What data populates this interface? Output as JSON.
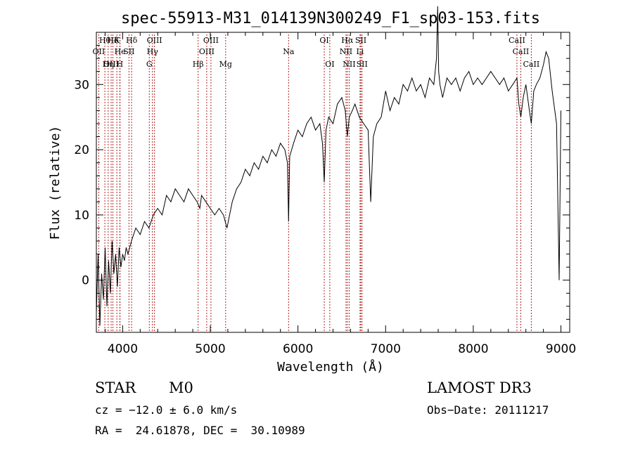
{
  "chart_data": {
    "type": "line",
    "title": "spec-55913-M31_014139N300249_F1_sp03-153.fits",
    "xlabel": "Wavelength (Å)",
    "ylabel": "Flux (relative)",
    "xlim": [
      3700,
      9100
    ],
    "ylim": [
      -8,
      38
    ],
    "x_ticks": [
      4000,
      5000,
      6000,
      7000,
      8000,
      9000
    ],
    "y_ticks": [
      0,
      10,
      20,
      30
    ],
    "grid": false,
    "series": [
      {
        "name": "spectrum",
        "x": [
          3700,
          3720,
          3740,
          3760,
          3780,
          3800,
          3820,
          3840,
          3860,
          3880,
          3900,
          3920,
          3940,
          3960,
          3980,
          4000,
          4020,
          4040,
          4060,
          4080,
          4100,
          4150,
          4200,
          4250,
          4300,
          4350,
          4400,
          4450,
          4500,
          4550,
          4600,
          4650,
          4700,
          4750,
          4800,
          4850,
          4880,
          4900,
          4950,
          5000,
          5050,
          5100,
          5150,
          5170,
          5190,
          5250,
          5300,
          5350,
          5400,
          5450,
          5500,
          5550,
          5600,
          5650,
          5700,
          5750,
          5800,
          5850,
          5880,
          5893,
          5906,
          5950,
          6000,
          6050,
          6100,
          6150,
          6200,
          6250,
          6280,
          6300,
          6320,
          6350,
          6400,
          6450,
          6500,
          6540,
          6563,
          6585,
          6620,
          6650,
          6700,
          6750,
          6800,
          6830,
          6860,
          6880,
          6900,
          6950,
          7000,
          7050,
          7100,
          7150,
          7200,
          7250,
          7300,
          7350,
          7400,
          7450,
          7500,
          7550,
          7580,
          7594,
          7605,
          7620,
          7650,
          7700,
          7750,
          7800,
          7850,
          7900,
          7950,
          8000,
          8050,
          8100,
          8150,
          8200,
          8250,
          8300,
          8350,
          8400,
          8450,
          8498,
          8520,
          8542,
          8570,
          8600,
          8640,
          8662,
          8690,
          8720,
          8760,
          8800,
          8830,
          8860,
          8900,
          8950,
          8980,
          9000
        ],
        "y": [
          -5,
          4,
          -7,
          1,
          -3,
          5,
          -4,
          3,
          -2,
          6,
          1,
          4,
          -1,
          5,
          2,
          4,
          3,
          5,
          4,
          5,
          6,
          8,
          7,
          9,
          8,
          10,
          11,
          10,
          13,
          12,
          14,
          13,
          12,
          14,
          13,
          12,
          11,
          13,
          12,
          11,
          10,
          11,
          10,
          9,
          8,
          12,
          14,
          15,
          17,
          16,
          18,
          17,
          19,
          18,
          20,
          19,
          21,
          20,
          18,
          9,
          19,
          21,
          23,
          22,
          24,
          25,
          23,
          24,
          21,
          15,
          23,
          25,
          24,
          27,
          28,
          26,
          22,
          25,
          26,
          27,
          25,
          24,
          23,
          12,
          22,
          23,
          24,
          25,
          29,
          26,
          28,
          27,
          30,
          29,
          31,
          29,
          30,
          28,
          31,
          30,
          34,
          42,
          32,
          30,
          28,
          31,
          30,
          31,
          29,
          31,
          32,
          30,
          31,
          30,
          31,
          32,
          31,
          30,
          31,
          29,
          30,
          31,
          27,
          25,
          28,
          30,
          26,
          24,
          29,
          30,
          31,
          33,
          35,
          34,
          29,
          24,
          0,
          26
        ]
      }
    ],
    "lines": [
      {
        "label": "Hθ",
        "wave": 3797,
        "row": 1
      },
      {
        "label": "OII",
        "wave": 3727,
        "row": 2
      },
      {
        "label": "OIII",
        "wave": 3869,
        "row": 3
      },
      {
        "label": "Hδ",
        "wave": 3889,
        "row": 1
      },
      {
        "label": "He",
        "wave": 3970,
        "row": 2
      },
      {
        "label": "Hη",
        "wave": 3835,
        "row": 3
      },
      {
        "label": "K",
        "wave": 3934,
        "row": 1
      },
      {
        "label": "SII",
        "wave": 4072,
        "row": 2
      },
      {
        "label": "H",
        "wave": 3968,
        "row": 3
      },
      {
        "label": "Hδ",
        "wave": 4102,
        "row": 1
      },
      {
        "label": "OIII",
        "wave": 4363,
        "row": 1
      },
      {
        "label": "Hγ",
        "wave": 4340,
        "row": 2
      },
      {
        "label": "G",
        "wave": 4304,
        "row": 3
      },
      {
        "label": "Hβ",
        "wave": 4861,
        "row": 3
      },
      {
        "label": "OIII",
        "wave": 5007,
        "row": 1
      },
      {
        "label": "OIII",
        "wave": 4959,
        "row": 2
      },
      {
        "label": "Mg",
        "wave": 5175,
        "row": 3
      },
      {
        "label": "Na",
        "wave": 5893,
        "row": 2
      },
      {
        "label": "OI",
        "wave": 6300,
        "row": 1
      },
      {
        "label": "OI",
        "wave": 6363,
        "row": 3
      },
      {
        "label": "Hα",
        "wave": 6563,
        "row": 1
      },
      {
        "label": "NII",
        "wave": 6548,
        "row": 2
      },
      {
        "label": "NII",
        "wave": 6584,
        "row": 3
      },
      {
        "label": "SII",
        "wave": 6717,
        "row": 1
      },
      {
        "label": "Li",
        "wave": 6708,
        "row": 2
      },
      {
        "label": "SII",
        "wave": 6731,
        "row": 3
      },
      {
        "label": "CaII",
        "wave": 8498,
        "row": 1
      },
      {
        "label": "CaII",
        "wave": 8542,
        "row": 2
      },
      {
        "label": "CaII",
        "wave": 8662,
        "row": 3
      }
    ]
  },
  "info": {
    "class": "STAR",
    "subclass": "M0",
    "survey": "LAMOST DR3",
    "cz": "cz = −12.0 ± 6.0 km/s",
    "obs_date": "Obs−Date: 20111217",
    "radec": "RA =  24.61878, DEC =  30.10989"
  },
  "colors": {
    "line_marker": "#b22222",
    "spectrum": "#000000",
    "axes": "#000000"
  }
}
